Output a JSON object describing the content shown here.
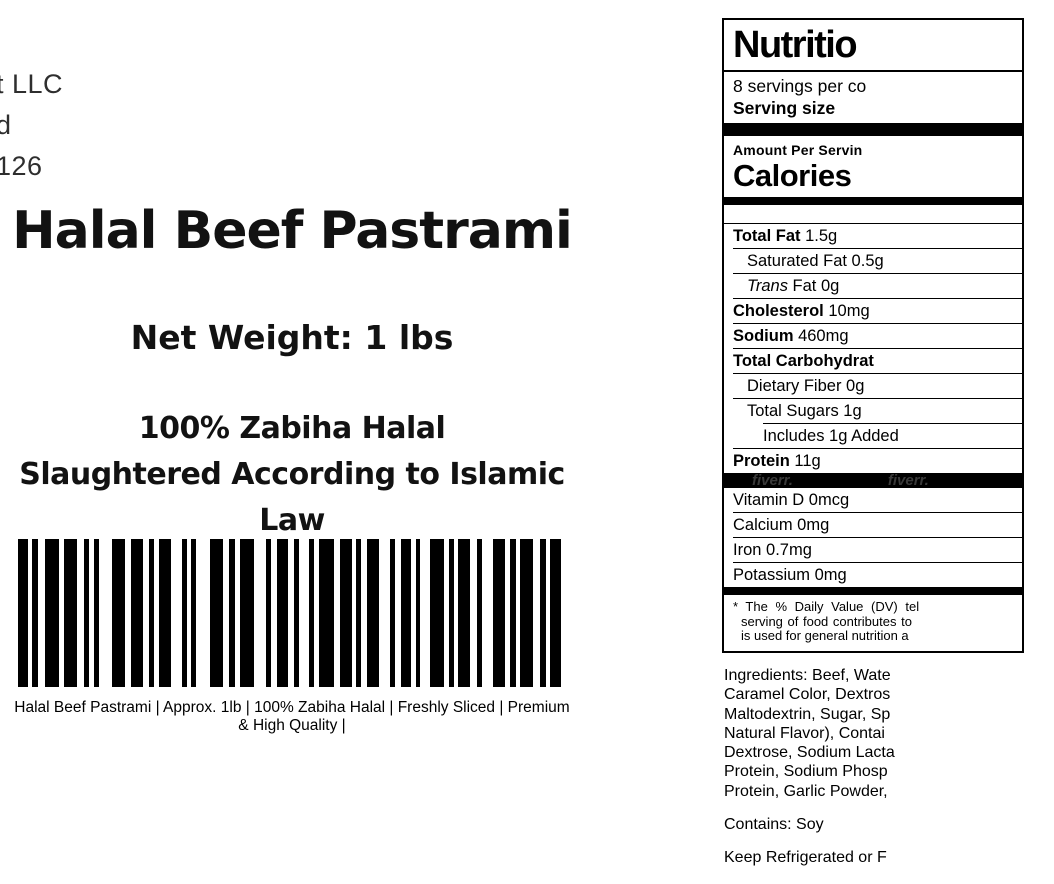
{
  "colors": {
    "ink": "#000000",
    "light_text": "#2e2e2e",
    "background": "#ffffff"
  },
  "company_block": {
    "lines": [
      "t LLC",
      "d",
      "126"
    ]
  },
  "left": {
    "title": "Halal Beef Pastrami",
    "net_weight": "Net Weight: 1 lbs",
    "halal_line1": "100% Zabiha Halal",
    "halal_line2": "Slaughtered According to Islamic Law",
    "caption_lines": [
      "Halal Beef Pastrami | Approx. 1lb | 100% Zabiha Halal | Freshly Sliced | Premium",
      "& High Quality |"
    ]
  },
  "barcode": {
    "pattern": [
      10,
      4,
      5,
      7,
      14,
      5,
      12,
      7,
      5,
      5,
      5,
      12,
      13,
      6,
      12,
      5,
      5,
      5,
      12,
      10,
      5,
      4,
      5,
      14,
      12,
      6,
      6,
      5,
      13,
      12,
      5,
      6,
      11,
      5,
      5,
      10,
      5,
      5,
      14,
      6,
      12,
      4,
      5,
      5,
      12,
      11,
      5,
      5,
      10,
      5,
      4,
      10,
      13,
      5,
      5,
      4,
      12,
      6,
      5,
      11,
      12,
      4,
      6,
      4,
      13,
      7,
      5,
      4,
      11
    ]
  },
  "nutrition": {
    "title": "Nutritio",
    "servings_line": "8 servings per co",
    "serving_size_label": "Serving size",
    "amount_per_label": "Amount Per Servin",
    "calories_label": "Calories",
    "rows": [
      {
        "bold": "Total Fat",
        "rest": " 1.5g",
        "indent": 0
      },
      {
        "rest": "Saturated Fat 0.5g",
        "indent": 1
      },
      {
        "italic": "Trans",
        "rest": " Fat 0g",
        "indent": 1
      },
      {
        "bold": "Cholesterol",
        "rest": " 10mg",
        "indent": 0
      },
      {
        "bold": "Sodium",
        "rest": " 460mg",
        "indent": 0
      },
      {
        "bold": "Total Carbohydrat",
        "rest": "",
        "indent": 0
      },
      {
        "rest": "Dietary Fiber 0g",
        "indent": 1
      },
      {
        "rest": "Total Sugars 1g",
        "indent": 1,
        "rule_indent": 30
      },
      {
        "rest": "Includes 1g Added",
        "indent": 2
      },
      {
        "bold": "Protein",
        "rest": " 11g",
        "indent": 0,
        "no_rule": true
      }
    ],
    "vitamins": [
      "Vitamin D 0mcg",
      "Calcium 0mg",
      "Iron 0.7mg",
      "Potassium 0mg"
    ],
    "footnote_lines": [
      "* The % Daily Value (DV) tel",
      "serving of food contributes to",
      "is used for general nutrition a"
    ],
    "watermark": "fiverr."
  },
  "ingredients": {
    "lines": [
      "Ingredients: Beef, Wate",
      "Caramel Color, Dextros",
      "Maltodextrin, Sugar, Sp",
      "Natural Flavor), Contai",
      "Dextrose, Sodium Lacta",
      "Protein, Sodium Phosp",
      "Protein, Garlic Powder,"
    ],
    "contains": "Contains: Soy",
    "storage": "Keep Refrigerated or F"
  }
}
